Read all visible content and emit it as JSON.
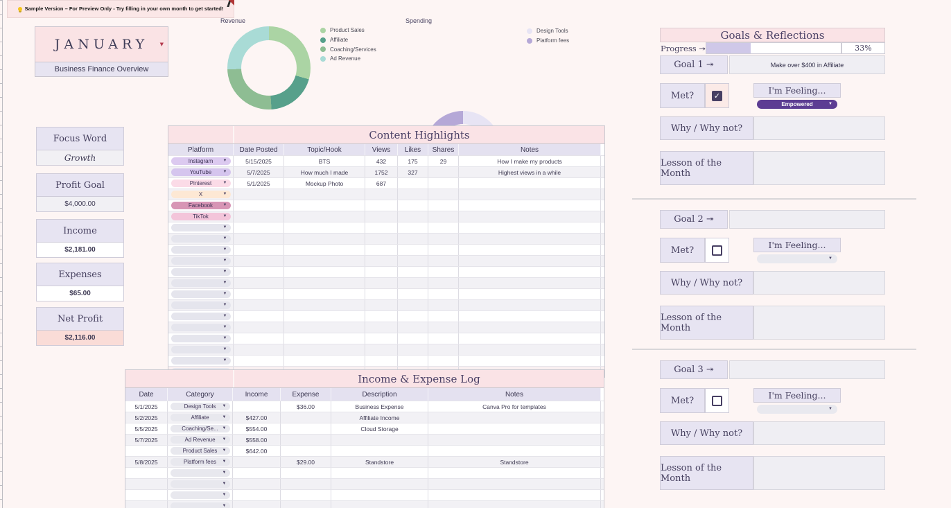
{
  "banner": {
    "icon": "lightbulb-icon",
    "text": "Sample Version – For Preview Only - Try filling in your own month to get started!"
  },
  "month": {
    "value": "JANUARY",
    "subtitle": "Business Finance Overview"
  },
  "stats": [
    {
      "label": "Focus Word",
      "value": "Growth",
      "style": "italic"
    },
    {
      "label": "Profit Goal",
      "value": "$4,000.00",
      "style": "plain"
    },
    {
      "label": "Income",
      "value": "$2,181.00",
      "style": "bold"
    },
    {
      "label": "Expenses",
      "value": "$65.00",
      "style": "bold"
    },
    {
      "label": "Net Profit",
      "value": "$2,116.00",
      "style": "bold-pink"
    }
  ],
  "chart_data": [
    {
      "type": "pie",
      "title": "Revenue",
      "legend_position": "right",
      "slices": [
        {
          "label": "Product Sales",
          "value": 642,
          "color": "#abd4a4"
        },
        {
          "label": "Affiliate",
          "value": 427,
          "color": "#57a08b"
        },
        {
          "label": "Coaching/Services",
          "value": 554,
          "color": "#8ebd93"
        },
        {
          "label": "Ad Revenue",
          "value": 558,
          "color": "#a9dbd6"
        }
      ]
    },
    {
      "type": "pie",
      "title": "Spending",
      "legend_position": "right",
      "slices": [
        {
          "label": "Design Tools",
          "value": 36,
          "color": "#e7e4f4"
        },
        {
          "label": "Platform fees",
          "value": 29,
          "color": "#b5a8d7"
        }
      ]
    }
  ],
  "content_highlights": {
    "title": "Content Highlights",
    "columns": [
      "Platform",
      "Date Posted",
      "Topic/Hook",
      "Views",
      "Likes",
      "Shares",
      "Notes"
    ],
    "empty_pill_color": "#e5e5ed",
    "empty_rows": 14,
    "rows": [
      {
        "platform": "Instagram",
        "pill_color": "#dccaf0",
        "date": "5/15/2025",
        "topic": "BTS",
        "views": "432",
        "likes": "175",
        "shares": "29",
        "notes": "How I make my products"
      },
      {
        "platform": "YouTube",
        "pill_color": "#d5c5ee",
        "date": "5/7/2025",
        "topic": "How much I made",
        "views": "1752",
        "likes": "327",
        "shares": "",
        "notes": "Highest views in a while"
      },
      {
        "platform": "Pinterest",
        "pill_color": "#fbdbe7",
        "date": "5/1/2025",
        "topic": "Mockup Photo",
        "views": "687",
        "likes": "",
        "shares": "",
        "notes": ""
      },
      {
        "platform": "X",
        "pill_color": "#fde8d4",
        "date": "",
        "topic": "",
        "views": "",
        "likes": "",
        "shares": "",
        "notes": ""
      },
      {
        "platform": "Facebook",
        "pill_color": "#d795b5",
        "date": "",
        "topic": "",
        "views": "",
        "likes": "",
        "shares": "",
        "notes": ""
      },
      {
        "platform": "TikTok",
        "pill_color": "#f3c5da",
        "date": "",
        "topic": "",
        "views": "",
        "likes": "",
        "shares": "",
        "notes": ""
      }
    ]
  },
  "expense_log": {
    "title": "Income & Expense Log",
    "columns": [
      "Date",
      "Category",
      "Income",
      "Expense",
      "Description",
      "Notes"
    ],
    "empty_pill_color": "#e8e8ee",
    "empty_rows": 5,
    "rows": [
      {
        "date": "5/1/2025",
        "category": "Design Tools",
        "income": "",
        "expense": "$36.00",
        "description": "Business Expense",
        "notes": "Canva Pro for templates"
      },
      {
        "date": "5/2/2025",
        "category": "Affiliate",
        "income": "$427.00",
        "expense": "",
        "description": "Affiliate Income",
        "notes": ""
      },
      {
        "date": "5/5/2025",
        "category": "Coaching/Se...",
        "income": "$554.00",
        "expense": "",
        "description": "Cloud Storage",
        "notes": ""
      },
      {
        "date": "5/7/2025",
        "category": "Ad Revenue",
        "income": "$558.00",
        "expense": "",
        "description": "",
        "notes": ""
      },
      {
        "date": "",
        "category": "Product Sales",
        "income": "$642.00",
        "expense": "",
        "description": "",
        "notes": ""
      },
      {
        "date": "5/8/2025",
        "category": "Platform fees",
        "income": "",
        "expense": "$29.00",
        "description": "Standstore",
        "notes": "Standstore"
      }
    ]
  },
  "goals": {
    "title": "Goals & Reflections",
    "progress_label": "Progress ↠",
    "progress_percent": "33%",
    "progress_value": 33,
    "met_label": "Met?",
    "feeling_label": "I'm Feeling...",
    "why_label": "Why / Why not?",
    "lesson_label": "Lesson of the Month",
    "sections": [
      {
        "label": "Goal 1 ↠",
        "goal": "Make over $400 in Affiliate",
        "met": true,
        "feeling": "Empowered",
        "why": "",
        "lesson": ""
      },
      {
        "label": "Goal 2 ↠",
        "goal": "",
        "met": false,
        "feeling": "",
        "why": "",
        "lesson": ""
      },
      {
        "label": "Goal 3 ↠",
        "goal": "",
        "met": false,
        "feeling": "",
        "why": "",
        "lesson": ""
      }
    ]
  }
}
